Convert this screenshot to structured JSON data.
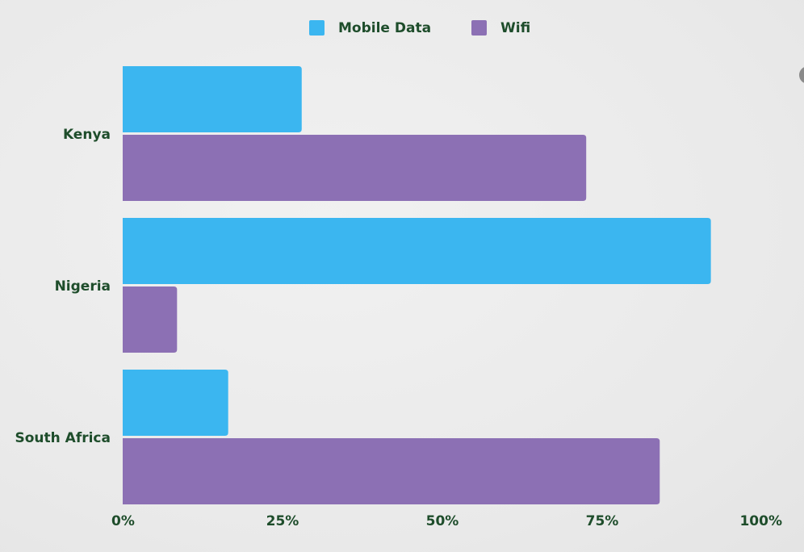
{
  "chart_data": {
    "type": "bar",
    "orientation": "horizontal",
    "categories": [
      "Kenya",
      "Nigeria",
      "South Africa"
    ],
    "series": [
      {
        "name": "Mobile Data",
        "values": [
          28,
          92,
          16.5
        ],
        "color": "#3bb6f0"
      },
      {
        "name": "Wifi",
        "values": [
          72.5,
          8.5,
          84
        ],
        "color": "#8c70b4"
      }
    ],
    "xlim": [
      0,
      100
    ],
    "x_ticks": [
      0,
      25,
      50,
      75,
      100
    ],
    "x_tick_labels": [
      "0%",
      "25%",
      "50%",
      "75%",
      "100%"
    ],
    "legend_position": "top-center",
    "grid": false,
    "label_color": "#1e4d2b"
  }
}
